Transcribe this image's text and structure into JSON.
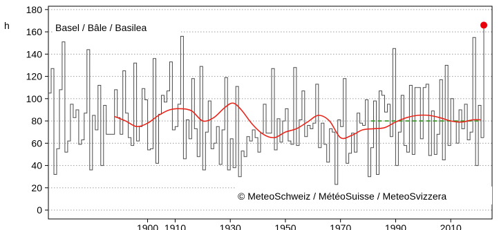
{
  "chart_data": {
    "type": "line",
    "title": "Basel  /  Bâle  /  Basilea",
    "ylabel": "h",
    "xlabel": "",
    "copyright": "© MeteoSchweiz / MétéoSuisse / MeteoSvizzera",
    "xlim": [
      1864,
      2025
    ],
    "ylim": [
      -8,
      183
    ],
    "x_ticks": [
      1900,
      1910,
      1930,
      1950,
      1970,
      1990,
      2010
    ],
    "x_tick_labels": [
      "1900",
      "1910",
      "1930",
      "1950",
      "1970",
      "1990",
      "2010"
    ],
    "y_ticks": [
      0,
      20,
      40,
      60,
      80,
      100,
      120,
      140,
      160,
      180
    ],
    "grid": true,
    "colors": {
      "steps": "#4a4a4a",
      "smooth": "#e8251b",
      "normal": "#3a9a2a",
      "highlight": "#e8000a",
      "grid": "#9a9a9a"
    },
    "series": [
      {
        "role": "annual-values",
        "style": "step",
        "x": [
          1864,
          1865,
          1866,
          1867,
          1868,
          1869,
          1870,
          1871,
          1872,
          1873,
          1874,
          1875,
          1876,
          1877,
          1878,
          1879,
          1880,
          1881,
          1882,
          1883,
          1884,
          1885,
          1886,
          1887,
          1888,
          1889,
          1890,
          1891,
          1892,
          1893,
          1894,
          1895,
          1896,
          1897,
          1898,
          1899,
          1900,
          1901,
          1902,
          1903,
          1904,
          1905,
          1906,
          1907,
          1908,
          1909,
          1910,
          1911,
          1912,
          1913,
          1914,
          1915,
          1916,
          1917,
          1918,
          1919,
          1920,
          1921,
          1922,
          1923,
          1924,
          1925,
          1926,
          1927,
          1928,
          1929,
          1930,
          1931,
          1932,
          1933,
          1934,
          1935,
          1936,
          1937,
          1938,
          1939,
          1940,
          1941,
          1942,
          1943,
          1944,
          1945,
          1946,
          1947,
          1948,
          1949,
          1950,
          1951,
          1952,
          1953,
          1954,
          1955,
          1956,
          1957,
          1958,
          1959,
          1960,
          1961,
          1962,
          1963,
          1964,
          1965,
          1966,
          1967,
          1968,
          1969,
          1970,
          1971,
          1972,
          1973,
          1974,
          1975,
          1976,
          1977,
          1978,
          1979,
          1980,
          1981,
          1982,
          1983,
          1984,
          1985,
          1986,
          1987,
          1988,
          1989,
          1990,
          1991,
          1992,
          1993,
          1994,
          1995,
          1996,
          1997,
          1998,
          1999,
          2000,
          2001,
          2002,
          2003,
          2004,
          2005,
          2006,
          2007,
          2008,
          2009,
          2010,
          2011,
          2012,
          2013,
          2014,
          2015,
          2016,
          2017,
          2018,
          2019,
          2020,
          2021
        ],
        "values": [
          105,
          127,
          32,
          55,
          108,
          151,
          52,
          62,
          95,
          83,
          90,
          59,
          63,
          87,
          144,
          36,
          85,
          72,
          112,
          40,
          94,
          68,
          68,
          68,
          108,
          83,
          68,
          125,
          87,
          65,
          58,
          132,
          62,
          75,
          109,
          99,
          54,
          55,
          136,
          42,
          86,
          103,
          97,
          107,
          133,
          72,
          75,
          95,
          156,
          46,
          81,
          64,
          118,
          73,
          48,
          129,
          36,
          70,
          98,
          55,
          60,
          75,
          41,
          72,
          119,
          36,
          64,
          38,
          111,
          30,
          53,
          48,
          66,
          62,
          72,
          65,
          52,
          69,
          95,
          69,
          69,
          127,
          54,
          82,
          61,
          80,
          91,
          62,
          59,
          128,
          58,
          81,
          107,
          66,
          76,
          73,
          78,
          113,
          56,
          78,
          59,
          43,
          73,
          70,
          23,
          81,
          75,
          118,
          42,
          51,
          69,
          52,
          87,
          78,
          76,
          99,
          30,
          56,
          98,
          32,
          107,
          103,
          88,
          95,
          66,
          145,
          40,
          70,
          103,
          58,
          52,
          112,
          50,
          110,
          110,
          64,
          110,
          113,
          49,
          89,
          50,
          68,
          117,
          45,
          130,
          58,
          100,
          80,
          60,
          90,
          73,
          95,
          63,
          70,
          155,
          40,
          94,
          65
        ]
      },
      {
        "role": "smoothed-trend",
        "style": "line",
        "x": [
          1888,
          1892,
          1896,
          1900,
          1904,
          1908,
          1912,
          1916,
          1920,
          1924,
          1928,
          1931,
          1934,
          1938,
          1942,
          1946,
          1950,
          1954,
          1958,
          1962,
          1966,
          1970,
          1974,
          1978,
          1982,
          1986,
          1990,
          1994,
          1998,
          2002,
          2006,
          2010,
          2014,
          2018,
          2021
        ],
        "values": [
          84,
          80,
          75,
          78,
          85,
          90,
          91,
          89,
          80,
          83,
          92,
          96,
          90,
          77,
          68,
          65,
          70,
          73,
          79,
          85,
          80,
          65,
          67,
          72,
          73,
          74,
          79,
          83,
          85,
          85,
          83,
          80,
          79,
          81,
          81
        ]
      },
      {
        "role": "normal-period-mean",
        "style": "dashed",
        "x": [
          1981,
          2021
        ],
        "values": [
          80,
          80
        ]
      },
      {
        "role": "latest-year",
        "style": "marker",
        "x": [
          2022
        ],
        "values": [
          166
        ]
      }
    ]
  }
}
